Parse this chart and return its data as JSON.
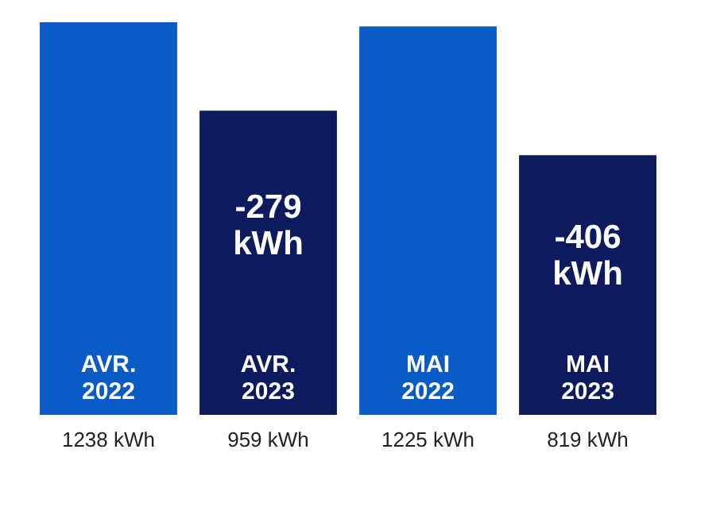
{
  "chart_data": {
    "type": "bar",
    "categories": [
      "AVR. 2022",
      "AVR. 2023",
      "MAI 2022",
      "MAI 2023"
    ],
    "values": [
      1238,
      959,
      1225,
      819
    ],
    "colors": [
      "#0a5bc6",
      "#0e1a5e",
      "#0a5bc6",
      "#0e1a5e"
    ],
    "value_labels": [
      "1238 kWh",
      "959 kWh",
      "1225 kWh",
      "819 kWh"
    ],
    "annotations": [
      "-279 kWh",
      "-406 kWh"
    ]
  }
}
